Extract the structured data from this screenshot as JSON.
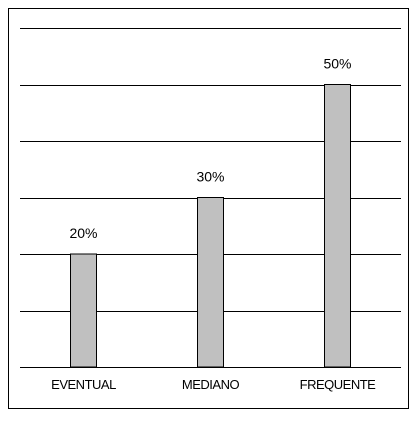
{
  "chart_data": {
    "type": "bar",
    "title": "",
    "xlabel": "",
    "ylabel": "",
    "categories": [
      "EVENTUAL",
      "MEDIANO",
      "FREQUENTE"
    ],
    "values": [
      20,
      30,
      50
    ],
    "data_labels": [
      "20%",
      "30%",
      "50%"
    ],
    "ylim": [
      0,
      60
    ],
    "grid": true,
    "legend": "none",
    "colors": {
      "bar_fill": "#C0C0C0",
      "bar_stroke": "#000000",
      "grid": "#000000",
      "frame": "#000000",
      "plot_background": "#FFFFFF"
    }
  }
}
